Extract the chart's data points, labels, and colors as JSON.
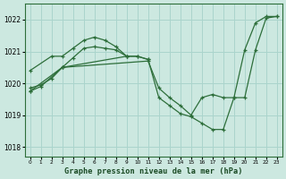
{
  "title": "Graphe pression niveau de la mer (hPa)",
  "background_color": "#cce8e0",
  "grid_color": "#aad4cc",
  "line_color": "#2d6e3a",
  "ylim": [
    1017.7,
    1022.5
  ],
  "xlim": [
    -0.5,
    23.5
  ],
  "yticks": [
    1018,
    1019,
    1020,
    1021,
    1022
  ],
  "xticks": [
    0,
    1,
    2,
    3,
    4,
    5,
    6,
    7,
    8,
    9,
    10,
    11,
    12,
    13,
    14,
    15,
    16,
    17,
    18,
    19,
    20,
    21,
    22,
    23
  ],
  "series": [
    {
      "x": [
        0,
        2,
        3,
        4,
        5,
        6,
        7,
        8,
        9
      ],
      "y": [
        1020.4,
        1020.85,
        1020.85,
        1021.1,
        1021.35,
        1021.45,
        1021.35,
        1021.15,
        1020.85
      ]
    },
    {
      "x": [
        0,
        3,
        11,
        12,
        13,
        14,
        15,
        16,
        17,
        18,
        19,
        20,
        21,
        22,
        23
      ],
      "y": [
        1019.75,
        1020.5,
        1020.7,
        1019.85,
        1019.55,
        1019.3,
        1019.0,
        1019.55,
        1019.65,
        1019.55,
        1019.55,
        1019.55,
        1021.05,
        1022.05,
        1022.1
      ]
    },
    {
      "x": [
        0,
        1,
        2,
        3,
        4,
        5,
        6,
        7,
        8,
        9,
        10,
        11,
        12,
        13,
        14,
        15,
        16,
        17,
        18,
        19,
        20,
        21,
        22,
        23
      ],
      "y": [
        1019.85,
        1019.95,
        1020.15,
        1020.5,
        1020.8,
        1021.1,
        1021.15,
        1021.1,
        1021.05,
        1020.85,
        1020.85,
        1020.75,
        1019.55,
        1019.3,
        1019.05,
        1018.95,
        1018.75,
        1018.55,
        1018.55,
        1019.55,
        1021.05,
        1021.9,
        1022.1,
        1022.1
      ]
    },
    {
      "x": [
        0,
        1,
        3,
        9,
        10,
        11
      ],
      "y": [
        1019.75,
        1019.9,
        1020.5,
        1020.85,
        1020.85,
        1020.75
      ]
    }
  ]
}
